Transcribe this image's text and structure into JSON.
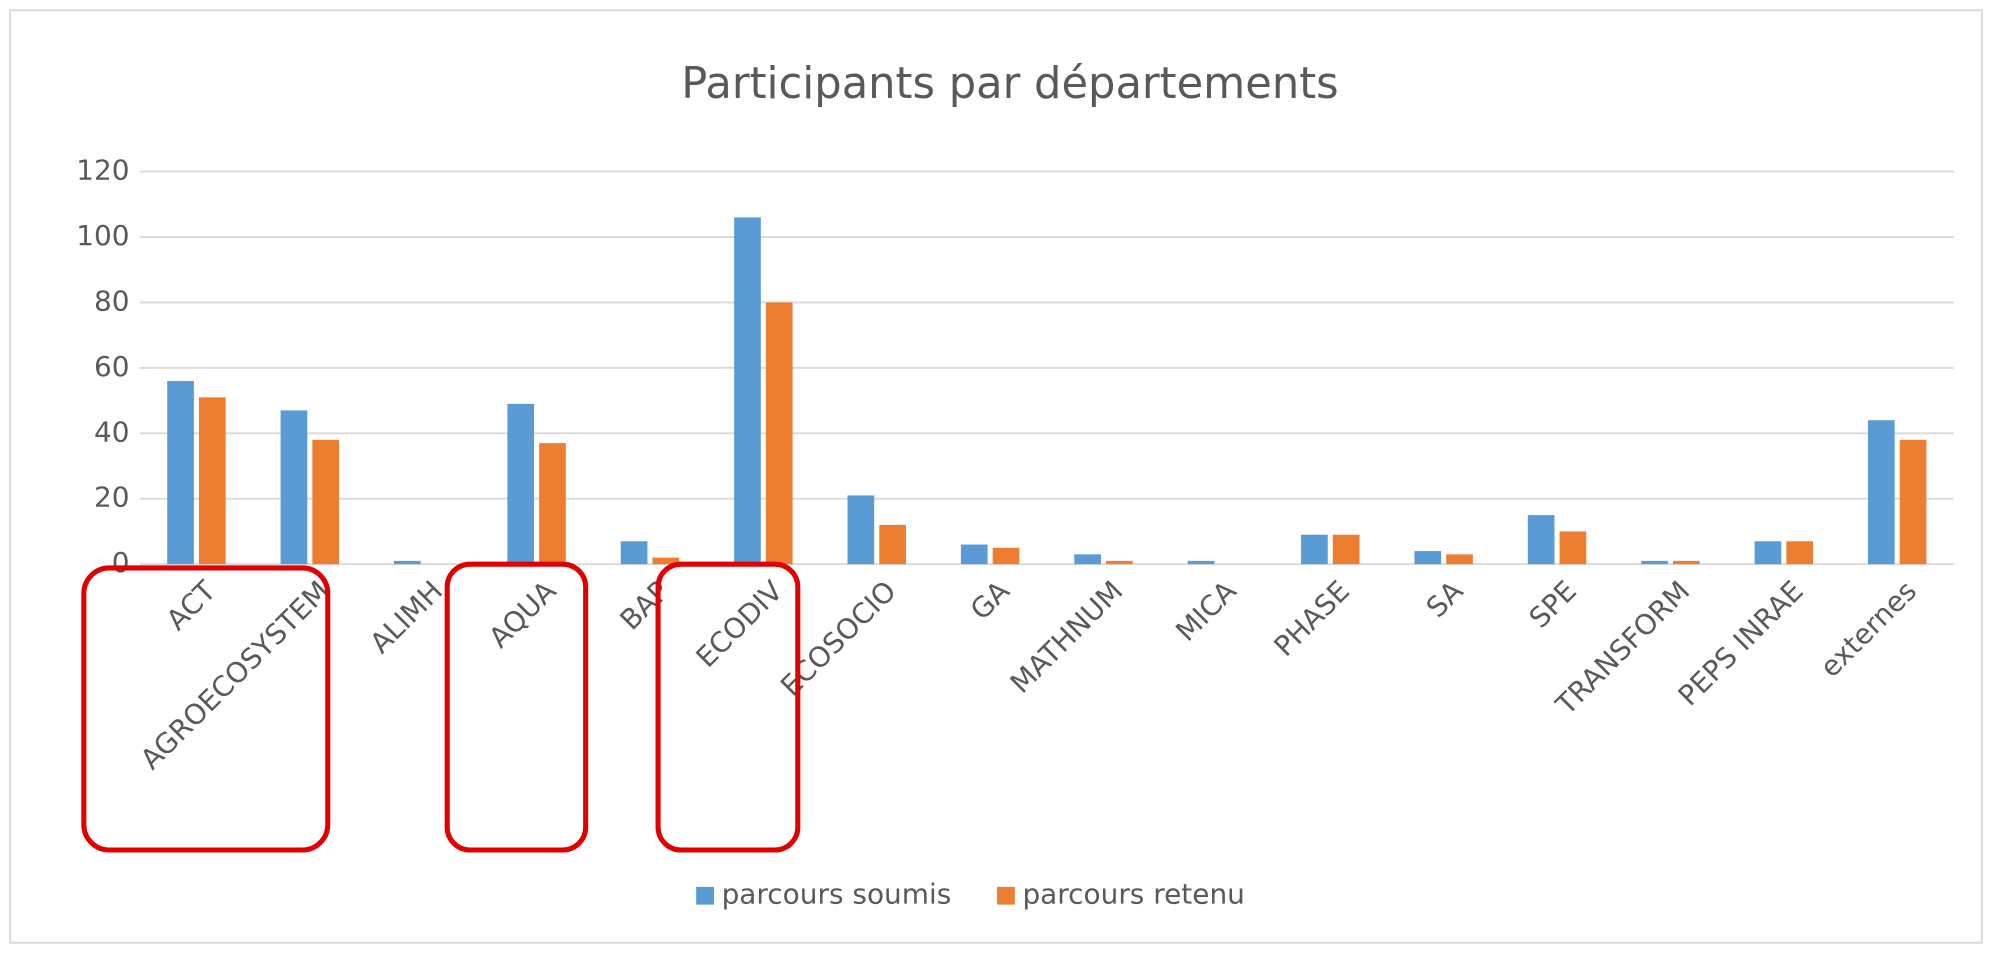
{
  "chart_data": {
    "type": "bar",
    "title": "Participants par départements",
    "categories": [
      "ACT",
      "AGROECOSYSTEM",
      "ALIMH",
      "AQUA",
      "BAP",
      "ECODIV",
      "ECOSOCIO",
      "GA",
      "MATHNUM",
      "MICA",
      "PHASE",
      "SA",
      "SPE",
      "TRANSFORM",
      "PEPS INRAE",
      "externes"
    ],
    "series": [
      {
        "name": "parcours soumis",
        "color": "#5b9bd5",
        "values": [
          56,
          47,
          1,
          49,
          7,
          106,
          21,
          6,
          3,
          1,
          9,
          4,
          15,
          1,
          7,
          44
        ]
      },
      {
        "name": "parcours retenu",
        "color": "#ed7d31",
        "values": [
          51,
          38,
          0,
          37,
          2,
          80,
          12,
          5,
          1,
          0,
          9,
          3,
          10,
          1,
          7,
          38
        ]
      }
    ],
    "ylim": [
      0,
      120
    ],
    "yticks": [
      0,
      20,
      40,
      60,
      80,
      100,
      120
    ],
    "grid": true,
    "legend": "bottom"
  }
}
